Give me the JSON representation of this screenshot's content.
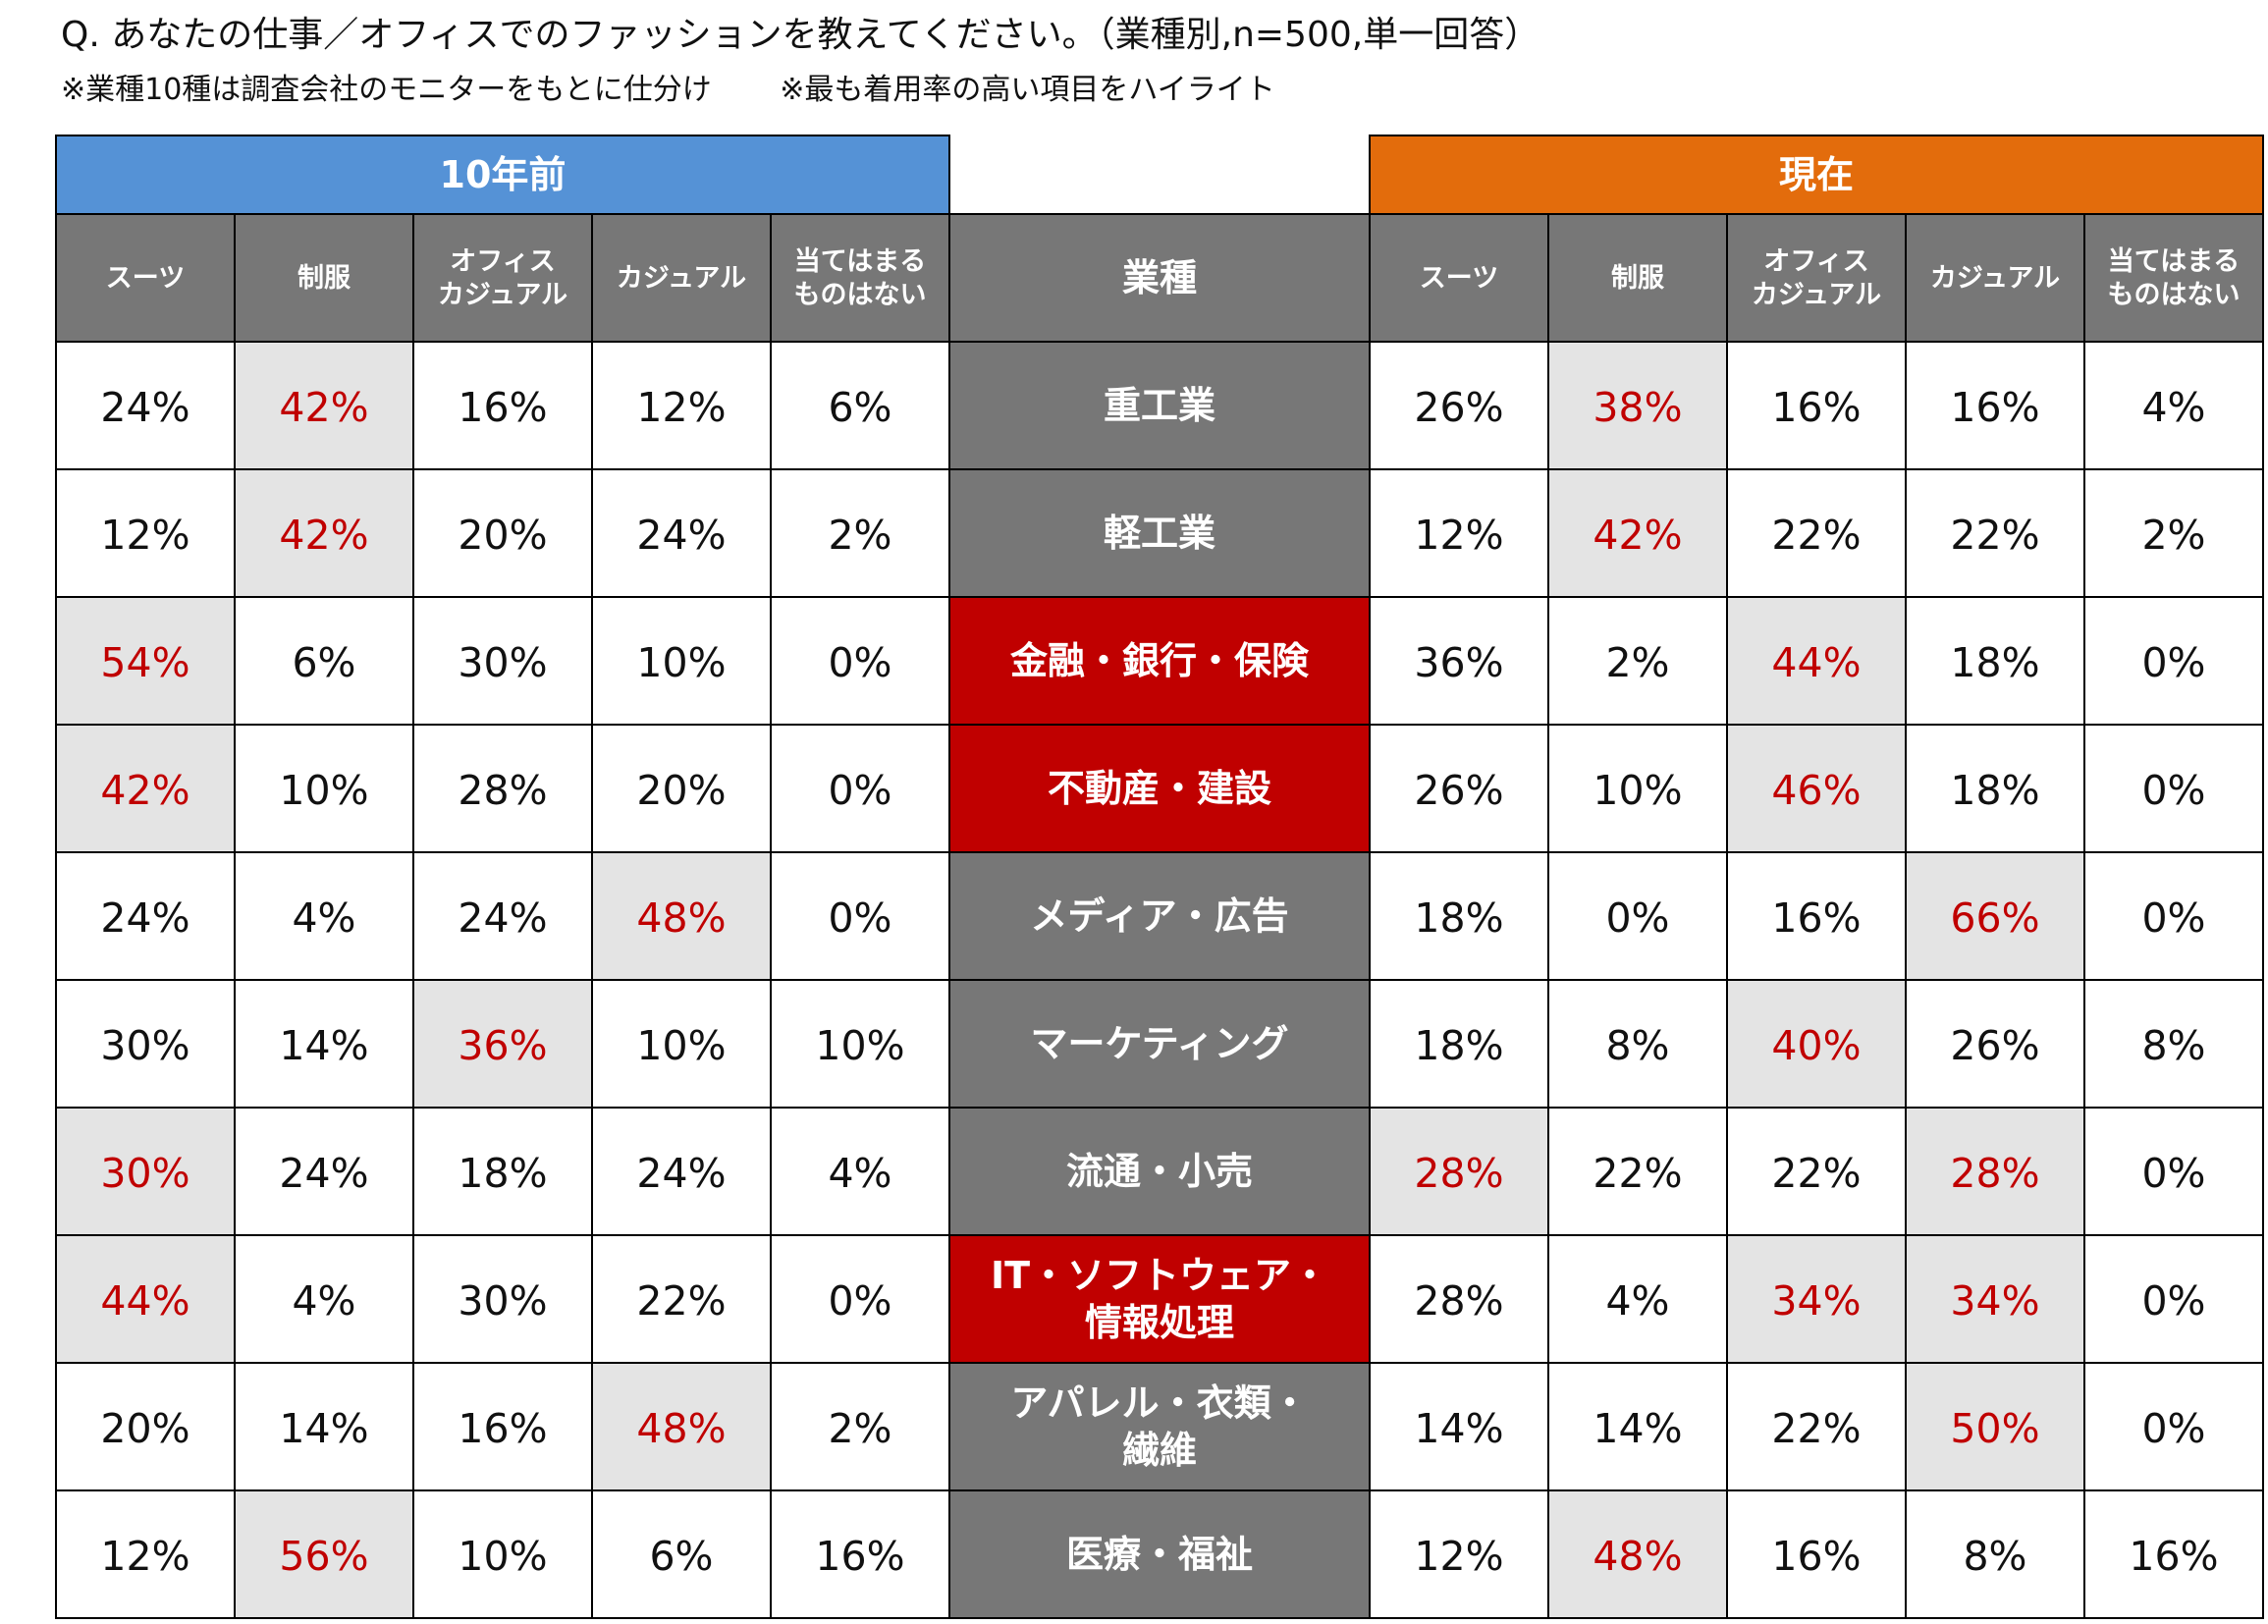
{
  "title": "Q. あなたの仕事／オフィスでのファッションを教えてください。（業種別,n=500,単一回答）",
  "notes": [
    "※業種10種は調査会社のモニターをもとに仕分け",
    "※最も着用率の高い項目をハイライト"
  ],
  "colors": {
    "past_header": "#5592d6",
    "now_header": "#e36c0c",
    "column_header": "#777777",
    "industry_cell": "#777777",
    "industry_cell_changed": "#c00000",
    "highlight_fill": "#e4e4e4",
    "highlight_text": "#c00000",
    "normal_text": "#111111",
    "header_text": "#ffffff"
  },
  "chart_data": {
    "type": "table",
    "groups": [
      {
        "key": "past",
        "label": "10年前"
      },
      {
        "key": "now",
        "label": "現在"
      }
    ],
    "industry_header": "業種",
    "columns": [
      [
        "スーツ"
      ],
      [
        "制服"
      ],
      [
        "オフィス",
        "カジュアル"
      ],
      [
        "カジュアル"
      ],
      [
        "当てはまる",
        "ものはない"
      ]
    ],
    "rows": [
      {
        "industry": [
          "重工業"
        ],
        "changed": false,
        "past": [
          "24%",
          "42%",
          "16%",
          "12%",
          "6%"
        ],
        "past_highlight": [
          1
        ],
        "now": [
          "26%",
          "38%",
          "16%",
          "16%",
          "4%"
        ],
        "now_highlight": [
          1
        ]
      },
      {
        "industry": [
          "軽工業"
        ],
        "changed": false,
        "past": [
          "12%",
          "42%",
          "20%",
          "24%",
          "2%"
        ],
        "past_highlight": [
          1
        ],
        "now": [
          "12%",
          "42%",
          "22%",
          "22%",
          "2%"
        ],
        "now_highlight": [
          1
        ]
      },
      {
        "industry": [
          "金融・銀行・保険"
        ],
        "changed": true,
        "past": [
          "54%",
          "6%",
          "30%",
          "10%",
          "0%"
        ],
        "past_highlight": [
          0
        ],
        "now": [
          "36%",
          "2%",
          "44%",
          "18%",
          "0%"
        ],
        "now_highlight": [
          2
        ]
      },
      {
        "industry": [
          "不動産・建設"
        ],
        "changed": true,
        "past": [
          "42%",
          "10%",
          "28%",
          "20%",
          "0%"
        ],
        "past_highlight": [
          0
        ],
        "now": [
          "26%",
          "10%",
          "46%",
          "18%",
          "0%"
        ],
        "now_highlight": [
          2
        ]
      },
      {
        "industry": [
          "メディア・広告"
        ],
        "changed": false,
        "past": [
          "24%",
          "4%",
          "24%",
          "48%",
          "0%"
        ],
        "past_highlight": [
          3
        ],
        "now": [
          "18%",
          "0%",
          "16%",
          "66%",
          "0%"
        ],
        "now_highlight": [
          3
        ]
      },
      {
        "industry": [
          "マーケティング"
        ],
        "changed": false,
        "past": [
          "30%",
          "14%",
          "36%",
          "10%",
          "10%"
        ],
        "past_highlight": [
          2
        ],
        "now": [
          "18%",
          "8%",
          "40%",
          "26%",
          "8%"
        ],
        "now_highlight": [
          2
        ]
      },
      {
        "industry": [
          "流通・小売"
        ],
        "changed": false,
        "past": [
          "30%",
          "24%",
          "18%",
          "24%",
          "4%"
        ],
        "past_highlight": [
          0
        ],
        "now": [
          "28%",
          "22%",
          "22%",
          "28%",
          "0%"
        ],
        "now_highlight": [
          0,
          3
        ]
      },
      {
        "industry": [
          "IT・ソフトウェア・",
          "情報処理"
        ],
        "changed": true,
        "past": [
          "44%",
          "4%",
          "30%",
          "22%",
          "0%"
        ],
        "past_highlight": [
          0
        ],
        "now": [
          "28%",
          "4%",
          "34%",
          "34%",
          "0%"
        ],
        "now_highlight": [
          2,
          3
        ]
      },
      {
        "industry": [
          "アパレル・衣類・",
          "繊維"
        ],
        "changed": false,
        "past": [
          "20%",
          "14%",
          "16%",
          "48%",
          "2%"
        ],
        "past_highlight": [
          3
        ],
        "now": [
          "14%",
          "14%",
          "22%",
          "50%",
          "0%"
        ],
        "now_highlight": [
          3
        ]
      },
      {
        "industry": [
          "医療・福祉"
        ],
        "changed": false,
        "past": [
          "12%",
          "56%",
          "10%",
          "6%",
          "16%"
        ],
        "past_highlight": [
          1
        ],
        "now": [
          "12%",
          "48%",
          "16%",
          "8%",
          "16%"
        ],
        "now_highlight": [
          1
        ]
      }
    ]
  }
}
